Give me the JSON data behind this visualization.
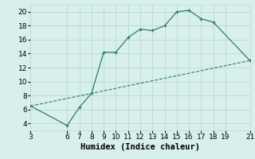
{
  "xlabel": "Humidex (Indice chaleur)",
  "xlim": [
    3,
    21
  ],
  "ylim": [
    3,
    21
  ],
  "xticks": [
    3,
    6,
    7,
    8,
    9,
    10,
    11,
    12,
    13,
    14,
    15,
    16,
    17,
    18,
    19,
    21
  ],
  "yticks": [
    4,
    6,
    8,
    10,
    12,
    14,
    16,
    18,
    20
  ],
  "line1_x": [
    3,
    21
  ],
  "line1_y": [
    6.5,
    13.0
  ],
  "line2_x": [
    3,
    6,
    7,
    8,
    9,
    10,
    11,
    12,
    13,
    14,
    15,
    16,
    17,
    18,
    21
  ],
  "line2_y": [
    6.5,
    3.7,
    6.3,
    8.3,
    14.2,
    14.2,
    16.3,
    17.5,
    17.3,
    18.0,
    20.0,
    20.2,
    19.0,
    18.5,
    13.0
  ],
  "line_color": "#2d7d6b",
  "bg_color": "#d8f0eb",
  "grid_color": "#b8d8d0",
  "tick_fontsize": 6.5,
  "xlabel_fontsize": 7.5
}
